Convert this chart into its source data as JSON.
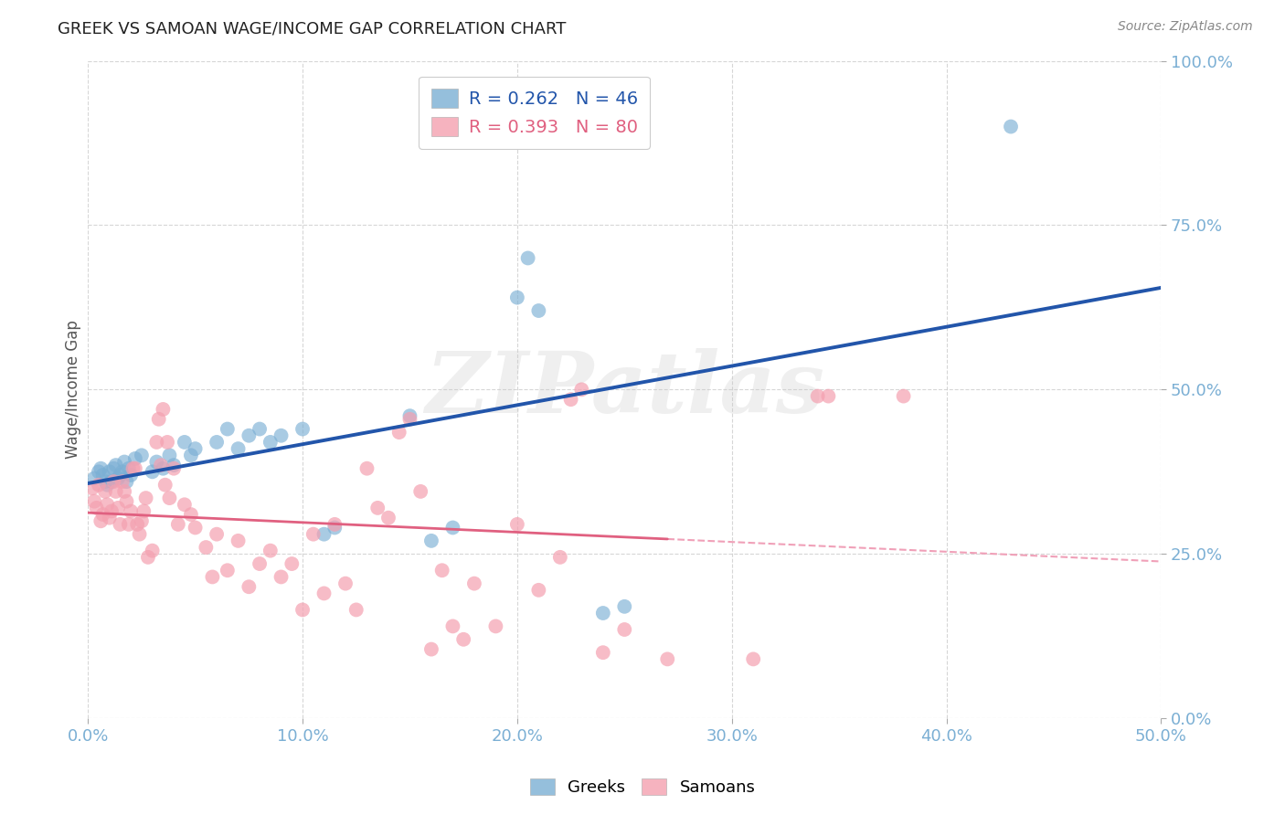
{
  "title": "GREEK VS SAMOAN WAGE/INCOME GAP CORRELATION CHART",
  "source": "Source: ZipAtlas.com",
  "xlim": [
    0.0,
    0.5
  ],
  "ylim": [
    0.0,
    1.0
  ],
  "ylabel": "Wage/Income Gap",
  "legend_labels": [
    "Greeks",
    "Samoans"
  ],
  "greek_R": "0.262",
  "greek_N": "46",
  "samoan_R": "0.393",
  "samoan_N": "80",
  "greek_color": "#7BAFD4",
  "samoan_color": "#F4A0B0",
  "greek_line_color": "#2255AA",
  "samoan_line_color": "#E06080",
  "samoan_dash_color": "#F0A0B8",
  "watermark": "ZIPatlas",
  "background_color": "#FFFFFF",
  "grid_color": "#CCCCCC",
  "title_color": "#333333",
  "axis_tick_color": "#7BAFD4",
  "greek_points": [
    [
      0.003,
      0.365
    ],
    [
      0.005,
      0.375
    ],
    [
      0.006,
      0.38
    ],
    [
      0.007,
      0.37
    ],
    [
      0.008,
      0.36
    ],
    [
      0.009,
      0.355
    ],
    [
      0.01,
      0.375
    ],
    [
      0.011,
      0.36
    ],
    [
      0.012,
      0.38
    ],
    [
      0.013,
      0.385
    ],
    [
      0.014,
      0.365
    ],
    [
      0.015,
      0.37
    ],
    [
      0.016,
      0.375
    ],
    [
      0.017,
      0.39
    ],
    [
      0.018,
      0.36
    ],
    [
      0.019,
      0.38
    ],
    [
      0.02,
      0.37
    ],
    [
      0.022,
      0.395
    ],
    [
      0.025,
      0.4
    ],
    [
      0.03,
      0.375
    ],
    [
      0.032,
      0.39
    ],
    [
      0.035,
      0.38
    ],
    [
      0.038,
      0.4
    ],
    [
      0.04,
      0.385
    ],
    [
      0.045,
      0.42
    ],
    [
      0.048,
      0.4
    ],
    [
      0.05,
      0.41
    ],
    [
      0.06,
      0.42
    ],
    [
      0.065,
      0.44
    ],
    [
      0.07,
      0.41
    ],
    [
      0.075,
      0.43
    ],
    [
      0.08,
      0.44
    ],
    [
      0.085,
      0.42
    ],
    [
      0.09,
      0.43
    ],
    [
      0.1,
      0.44
    ],
    [
      0.11,
      0.28
    ],
    [
      0.115,
      0.29
    ],
    [
      0.15,
      0.46
    ],
    [
      0.16,
      0.27
    ],
    [
      0.17,
      0.29
    ],
    [
      0.2,
      0.64
    ],
    [
      0.205,
      0.7
    ],
    [
      0.21,
      0.62
    ],
    [
      0.24,
      0.16
    ],
    [
      0.25,
      0.17
    ],
    [
      0.43,
      0.9
    ]
  ],
  "samoan_points": [
    [
      0.002,
      0.35
    ],
    [
      0.003,
      0.33
    ],
    [
      0.004,
      0.32
    ],
    [
      0.005,
      0.355
    ],
    [
      0.006,
      0.3
    ],
    [
      0.007,
      0.31
    ],
    [
      0.008,
      0.345
    ],
    [
      0.009,
      0.325
    ],
    [
      0.01,
      0.305
    ],
    [
      0.011,
      0.315
    ],
    [
      0.012,
      0.36
    ],
    [
      0.013,
      0.345
    ],
    [
      0.014,
      0.32
    ],
    [
      0.015,
      0.295
    ],
    [
      0.016,
      0.36
    ],
    [
      0.017,
      0.345
    ],
    [
      0.018,
      0.33
    ],
    [
      0.019,
      0.295
    ],
    [
      0.02,
      0.315
    ],
    [
      0.021,
      0.38
    ],
    [
      0.022,
      0.38
    ],
    [
      0.023,
      0.295
    ],
    [
      0.024,
      0.28
    ],
    [
      0.025,
      0.3
    ],
    [
      0.026,
      0.315
    ],
    [
      0.027,
      0.335
    ],
    [
      0.028,
      0.245
    ],
    [
      0.03,
      0.255
    ],
    [
      0.032,
      0.42
    ],
    [
      0.033,
      0.455
    ],
    [
      0.034,
      0.385
    ],
    [
      0.035,
      0.47
    ],
    [
      0.036,
      0.355
    ],
    [
      0.037,
      0.42
    ],
    [
      0.038,
      0.335
    ],
    [
      0.04,
      0.38
    ],
    [
      0.042,
      0.295
    ],
    [
      0.045,
      0.325
    ],
    [
      0.048,
      0.31
    ],
    [
      0.05,
      0.29
    ],
    [
      0.055,
      0.26
    ],
    [
      0.058,
      0.215
    ],
    [
      0.06,
      0.28
    ],
    [
      0.065,
      0.225
    ],
    [
      0.07,
      0.27
    ],
    [
      0.075,
      0.2
    ],
    [
      0.08,
      0.235
    ],
    [
      0.085,
      0.255
    ],
    [
      0.09,
      0.215
    ],
    [
      0.095,
      0.235
    ],
    [
      0.1,
      0.165
    ],
    [
      0.105,
      0.28
    ],
    [
      0.11,
      0.19
    ],
    [
      0.115,
      0.295
    ],
    [
      0.12,
      0.205
    ],
    [
      0.125,
      0.165
    ],
    [
      0.13,
      0.38
    ],
    [
      0.135,
      0.32
    ],
    [
      0.14,
      0.305
    ],
    [
      0.145,
      0.435
    ],
    [
      0.15,
      0.455
    ],
    [
      0.155,
      0.345
    ],
    [
      0.16,
      0.105
    ],
    [
      0.165,
      0.225
    ],
    [
      0.17,
      0.14
    ],
    [
      0.175,
      0.12
    ],
    [
      0.18,
      0.205
    ],
    [
      0.19,
      0.14
    ],
    [
      0.2,
      0.295
    ],
    [
      0.21,
      0.195
    ],
    [
      0.22,
      0.245
    ],
    [
      0.225,
      0.485
    ],
    [
      0.23,
      0.5
    ],
    [
      0.24,
      0.1
    ],
    [
      0.25,
      0.135
    ],
    [
      0.27,
      0.09
    ],
    [
      0.31,
      0.09
    ],
    [
      0.34,
      0.49
    ],
    [
      0.345,
      0.49
    ],
    [
      0.38,
      0.49
    ]
  ]
}
